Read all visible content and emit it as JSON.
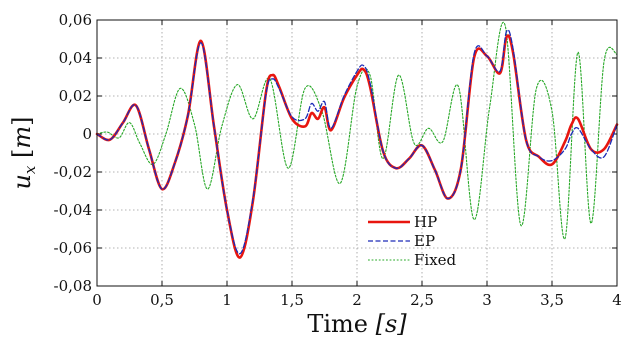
{
  "chart_data": {
    "type": "line",
    "xlabel": "Time [s]",
    "xlabel_main": "Time ",
    "xlabel_unit": "[s]",
    "ylabel": "u_x [m]",
    "xlim": [
      0,
      4
    ],
    "ylim": [
      -0.08,
      0.06
    ],
    "grid": true,
    "legend_position": "bottom-center",
    "x_ticks": [
      0,
      0.5,
      1,
      1.5,
      2,
      2.5,
      3,
      3.5,
      4
    ],
    "x_tick_labels": [
      "0",
      "0,5",
      "1",
      "1,5",
      "2",
      "2,5",
      "3",
      "3,5",
      "4"
    ],
    "y_ticks": [
      -0.08,
      -0.06,
      -0.04,
      -0.02,
      0,
      0.02,
      0.04,
      0.06
    ],
    "y_tick_labels": [
      "-0,08",
      "-0,06",
      "-0,04",
      "-0,02",
      "0",
      "0,02",
      "0,04",
      "0,06"
    ],
    "series": [
      {
        "name": "HP",
        "color": "#e8150f",
        "style": "solid",
        "x": [
          0,
          0.1,
          0.2,
          0.3,
          0.4,
          0.5,
          0.6,
          0.7,
          0.8,
          0.9,
          1.0,
          1.1,
          1.2,
          1.3,
          1.35,
          1.4,
          1.5,
          1.6,
          1.65,
          1.7,
          1.75,
          1.8,
          1.9,
          2.0,
          2.05,
          2.1,
          2.2,
          2.3,
          2.4,
          2.5,
          2.6,
          2.7,
          2.8,
          2.9,
          3.0,
          3.1,
          3.15,
          3.2,
          3.3,
          3.4,
          3.5,
          3.6,
          3.65,
          3.7,
          3.8,
          3.9,
          4.0
        ],
        "y": [
          0,
          -0.003,
          0.006,
          0.015,
          -0.008,
          -0.029,
          -0.015,
          0.01,
          0.049,
          0.004,
          -0.04,
          -0.065,
          -0.035,
          0.022,
          0.031,
          0.025,
          0.008,
          0.004,
          0.011,
          0.008,
          0.014,
          0.002,
          0.019,
          0.031,
          0.034,
          0.025,
          -0.009,
          -0.018,
          -0.013,
          -0.006,
          -0.019,
          -0.034,
          -0.018,
          0.04,
          0.041,
          0.032,
          0.051,
          0.043,
          -0.003,
          -0.012,
          -0.016,
          -0.004,
          0.005,
          0.008,
          -0.008,
          -0.008,
          0.005
        ]
      },
      {
        "name": "EP",
        "color": "#1c2bb8",
        "style": "dashed",
        "x": [
          0,
          0.1,
          0.2,
          0.3,
          0.4,
          0.5,
          0.6,
          0.7,
          0.8,
          0.9,
          1.0,
          1.1,
          1.2,
          1.3,
          1.35,
          1.4,
          1.5,
          1.6,
          1.65,
          1.7,
          1.75,
          1.8,
          1.9,
          2.0,
          2.05,
          2.1,
          2.2,
          2.3,
          2.4,
          2.5,
          2.6,
          2.7,
          2.8,
          2.9,
          3.0,
          3.1,
          3.15,
          3.2,
          3.3,
          3.4,
          3.5,
          3.6,
          3.65,
          3.7,
          3.8,
          3.9,
          4.0
        ],
        "y": [
          0,
          -0.003,
          0.006,
          0.015,
          -0.008,
          -0.029,
          -0.015,
          0.01,
          0.048,
          0.004,
          -0.04,
          -0.063,
          -0.034,
          0.021,
          0.029,
          0.024,
          0.009,
          0.008,
          0.016,
          0.012,
          0.017,
          0.003,
          0.02,
          0.033,
          0.036,
          0.027,
          -0.009,
          -0.018,
          -0.013,
          -0.006,
          -0.019,
          -0.034,
          -0.018,
          0.042,
          0.041,
          0.033,
          0.054,
          0.045,
          -0.003,
          -0.012,
          -0.014,
          -0.008,
          0.0,
          0.003,
          -0.008,
          -0.012,
          0.005
        ]
      },
      {
        "name": "Fixed",
        "color": "#27a827",
        "style": "dotted",
        "x": [
          0,
          0.08,
          0.17,
          0.25,
          0.33,
          0.43,
          0.53,
          0.64,
          0.75,
          0.85,
          0.96,
          1.08,
          1.2,
          1.33,
          1.47,
          1.6,
          1.73,
          1.87,
          2.0,
          2.1,
          2.2,
          2.32,
          2.44,
          2.55,
          2.66,
          2.78,
          2.9,
          3.02,
          3.14,
          3.26,
          3.38,
          3.5,
          3.6,
          3.7,
          3.8,
          3.9,
          4.0
        ],
        "y": [
          0,
          0.001,
          -0.002,
          0.006,
          -0.005,
          -0.016,
          0.0,
          0.024,
          0.005,
          -0.029,
          0.004,
          0.026,
          0.008,
          0.029,
          -0.018,
          0.024,
          0.012,
          -0.026,
          0.025,
          0.031,
          -0.013,
          0.031,
          -0.005,
          0.003,
          -0.004,
          0.025,
          -0.045,
          0.014,
          0.057,
          -0.048,
          0.024,
          0.012,
          -0.055,
          0.043,
          -0.047,
          0.038,
          0.042
        ]
      }
    ]
  }
}
